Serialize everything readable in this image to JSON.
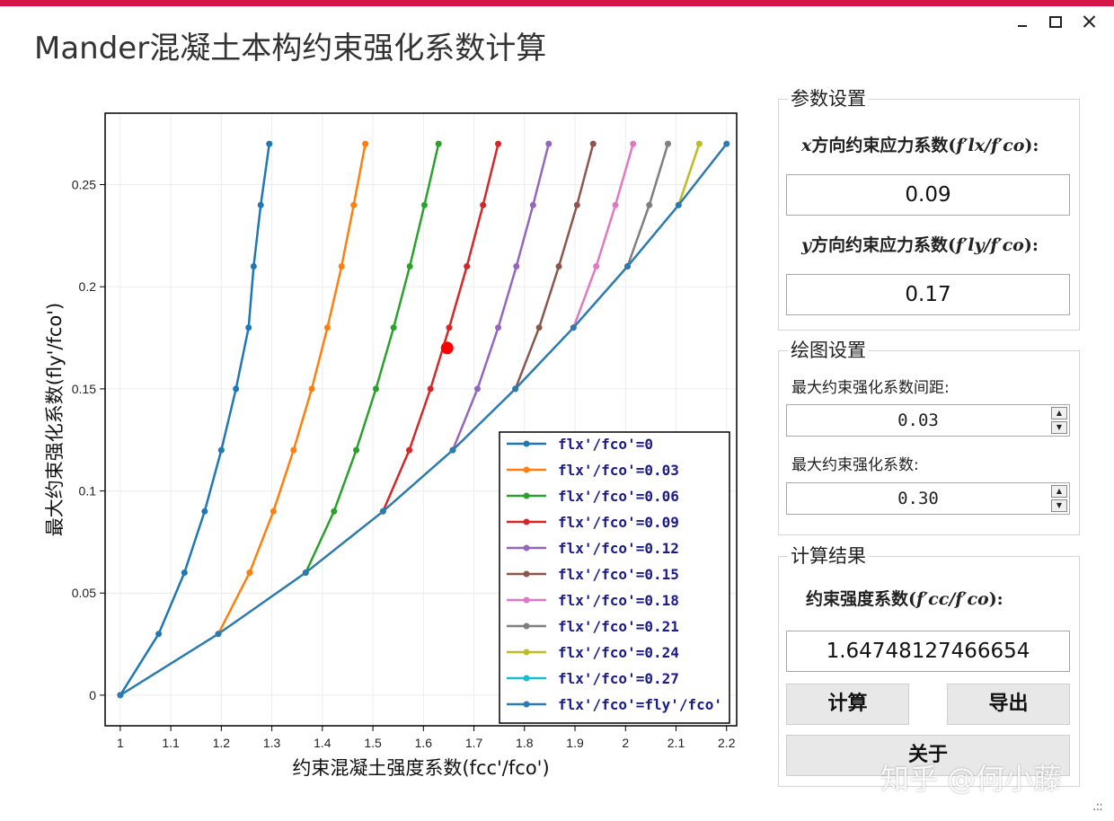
{
  "window": {
    "title": "Mander混凝土本构约束强化系数计算",
    "min_label": "",
    "max_label": "",
    "close_label": ""
  },
  "params": {
    "group_title": "参数设置",
    "x_label_prefix": "x",
    "x_label_mid": "方向约束应力系数(",
    "x_label_formula": "f′lx/f′co",
    "x_label_suffix": "):",
    "x_value": "0.09",
    "y_label_prefix": "y",
    "y_label_mid": "方向约束应力系数(",
    "y_label_formula": "f′ly/f′co",
    "y_label_suffix": "):",
    "y_value": "0.17"
  },
  "plot_settings": {
    "group_title": "绘图设置",
    "spacing_label": "最大约束强化系数间距:",
    "spacing_value": "0.03",
    "max_label": "最大约束强化系数:",
    "max_value": "0.30"
  },
  "result": {
    "group_title": "计算结果",
    "label_mid": "约束强度系数(",
    "label_formula": "f′cc/f′co",
    "label_suffix": "):",
    "value": "1.64748127466654",
    "calc_button": "计算",
    "export_button": "导出",
    "about_button": "关于"
  },
  "watermark": "知乎 @何小藤",
  "chart_data": {
    "type": "line",
    "xlabel": "约束混凝土强度系数(fcc'/fco')",
    "ylabel": "最大约束强化系数(fly'/fco')",
    "xlim": [
      0.97,
      2.22
    ],
    "ylim": [
      -0.015,
      0.285
    ],
    "xticks": [
      1,
      1.1,
      1.2,
      1.3,
      1.4,
      1.5,
      1.6,
      1.7,
      1.8,
      1.9,
      2,
      2.1,
      2.2
    ],
    "xtick_labels": [
      "1",
      "1.1",
      "1.2",
      "1.3",
      "1.4",
      "1.5",
      "1.6",
      "1.7",
      "1.8",
      "1.9",
      "2",
      "2.1",
      "2.2"
    ],
    "yticks": [
      0,
      0.05,
      0.1,
      0.15,
      0.2,
      0.25
    ],
    "ytick_labels": [
      "0",
      "0.05",
      "0.1",
      "0.15",
      "0.2",
      "0.25"
    ],
    "grid": true,
    "legend_position": "bottom-right",
    "series": [
      {
        "name": "flx'/fco'=0",
        "color": "#1f77b4",
        "x": [
          1.0,
          1.076,
          1.127,
          1.167,
          1.2,
          1.229,
          1.254,
          1.264,
          1.278,
          1.295
        ],
        "y": [
          0,
          0.03,
          0.06,
          0.09,
          0.12,
          0.15,
          0.18,
          0.21,
          0.24,
          0.27
        ]
      },
      {
        "name": "flx'/fco'=0.03",
        "color": "#ff7f0e",
        "x": [
          1.194,
          1.256,
          1.303,
          1.343,
          1.379,
          1.41,
          1.438,
          1.462,
          1.485
        ],
        "y": [
          0.03,
          0.06,
          0.09,
          0.12,
          0.15,
          0.18,
          0.21,
          0.24,
          0.27
        ]
      },
      {
        "name": "flx'/fco'=0.06",
        "color": "#2ca02c",
        "x": [
          1.367,
          1.423,
          1.467,
          1.506,
          1.541,
          1.573,
          1.602,
          1.63
        ],
        "y": [
          0.06,
          0.09,
          0.12,
          0.15,
          0.18,
          0.21,
          0.24,
          0.27
        ]
      },
      {
        "name": "flx'/fco'=0.09",
        "color": "#d62728",
        "x": [
          1.52,
          1.572,
          1.614,
          1.651,
          1.686,
          1.718,
          1.748
        ],
        "y": [
          0.09,
          0.12,
          0.15,
          0.18,
          0.21,
          0.24,
          0.27
        ]
      },
      {
        "name": "flx'/fco'=0.12",
        "color": "#9467bd",
        "x": [
          1.658,
          1.707,
          1.748,
          1.784,
          1.817,
          1.848
        ],
        "y": [
          0.12,
          0.15,
          0.18,
          0.21,
          0.24,
          0.27
        ]
      },
      {
        "name": "flx'/fco'=0.15",
        "color": "#8c564b",
        "x": [
          1.782,
          1.829,
          1.868,
          1.904,
          1.936
        ],
        "y": [
          0.15,
          0.18,
          0.21,
          0.24,
          0.27
        ]
      },
      {
        "name": "flx'/fco'=0.18",
        "color": "#e377c2",
        "x": [
          1.897,
          1.942,
          1.98,
          2.015
        ],
        "y": [
          0.18,
          0.21,
          0.24,
          0.27
        ]
      },
      {
        "name": "flx'/fco'=0.21",
        "color": "#7f7f7f",
        "x": [
          2.004,
          2.047,
          2.084
        ],
        "y": [
          0.21,
          0.24,
          0.27
        ]
      },
      {
        "name": "flx'/fco'=0.24",
        "color": "#bcbd22",
        "x": [
          2.105,
          2.146
        ],
        "y": [
          0.24,
          0.27
        ]
      },
      {
        "name": "flx'/fco'=0.27",
        "color": "#17becf",
        "x": [],
        "y": []
      },
      {
        "name": "flx'/fco'=fly'/fco'",
        "color": "#2b7bb0",
        "x": [
          1.0,
          1.194,
          1.367,
          1.52,
          1.658,
          1.782,
          1.897,
          2.004,
          2.105,
          2.2
        ],
        "y": [
          0,
          0.03,
          0.06,
          0.09,
          0.12,
          0.15,
          0.18,
          0.21,
          0.24,
          0.27
        ]
      }
    ],
    "highlight_point": {
      "x": 1.647,
      "y": 0.17,
      "color": "#ff0000"
    }
  }
}
